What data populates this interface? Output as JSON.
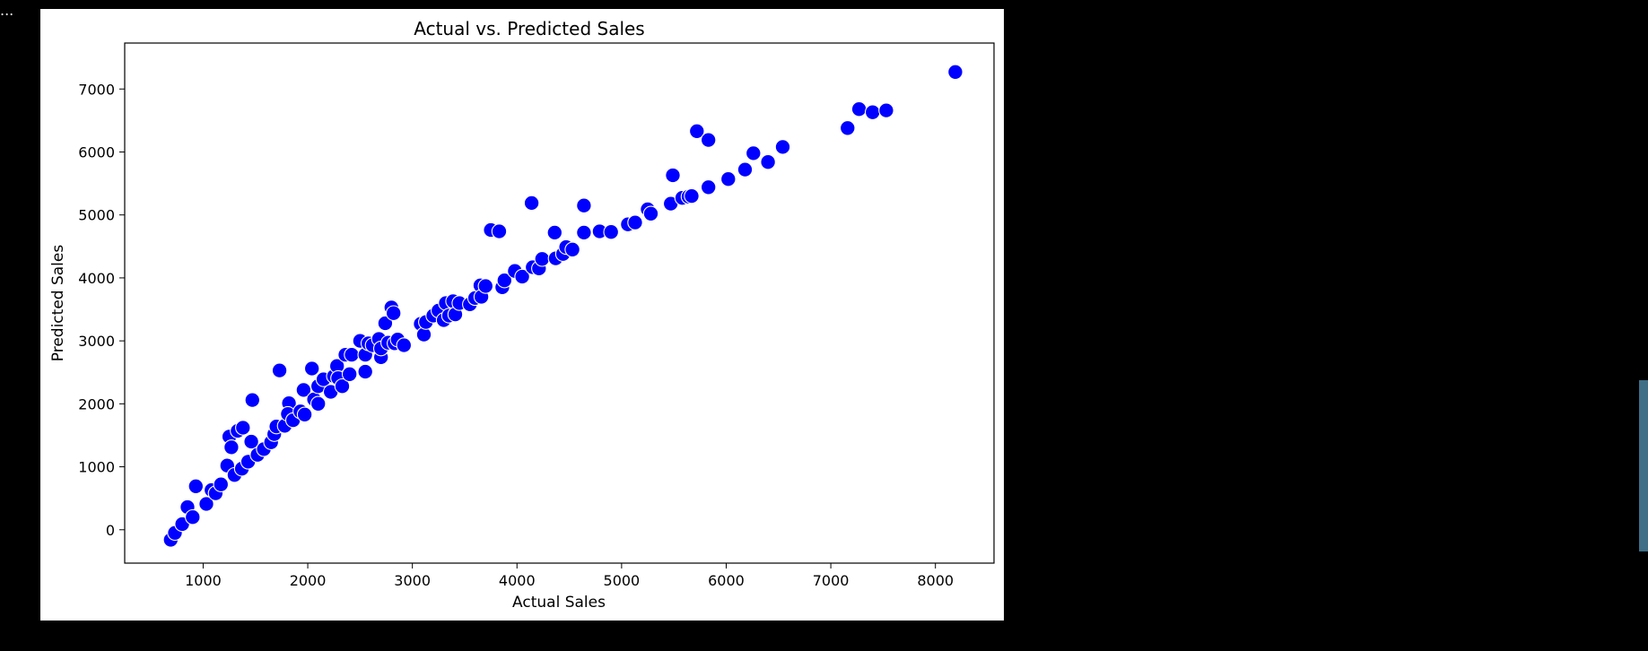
{
  "overflow_text": "...",
  "chart_data": {
    "type": "scatter",
    "title": "Actual vs. Predicted Sales",
    "xlabel": "Actual Sales",
    "ylabel": "Predicted Sales",
    "xlim": [
      250,
      8560
    ],
    "ylim": [
      -530,
      7730
    ],
    "xticks": [
      1000,
      2000,
      3000,
      4000,
      5000,
      6000,
      7000,
      8000
    ],
    "yticks": [
      0,
      1000,
      2000,
      3000,
      4000,
      5000,
      6000,
      7000
    ],
    "marker_color": "#0000ff",
    "marker_edge": "#ffffff",
    "grid": false,
    "points": [
      [
        690,
        -160
      ],
      [
        730,
        -50
      ],
      [
        800,
        90
      ],
      [
        850,
        360
      ],
      [
        900,
        200
      ],
      [
        930,
        690
      ],
      [
        1030,
        410
      ],
      [
        1080,
        630
      ],
      [
        1120,
        580
      ],
      [
        1170,
        720
      ],
      [
        1230,
        1020
      ],
      [
        1250,
        1480
      ],
      [
        1270,
        1310
      ],
      [
        1300,
        870
      ],
      [
        1330,
        1570
      ],
      [
        1380,
        1620
      ],
      [
        1370,
        970
      ],
      [
        1430,
        1080
      ],
      [
        1470,
        2060
      ],
      [
        1460,
        1400
      ],
      [
        1520,
        1190
      ],
      [
        1580,
        1280
      ],
      [
        1650,
        1390
      ],
      [
        1680,
        1520
      ],
      [
        1730,
        2530
      ],
      [
        1700,
        1640
      ],
      [
        1780,
        1650
      ],
      [
        1820,
        2010
      ],
      [
        1810,
        1840
      ],
      [
        1860,
        1740
      ],
      [
        1930,
        1880
      ],
      [
        1960,
        2220
      ],
      [
        1970,
        1830
      ],
      [
        2040,
        2560
      ],
      [
        2060,
        2070
      ],
      [
        2100,
        2000
      ],
      [
        2100,
        2280
      ],
      [
        2150,
        2390
      ],
      [
        2220,
        2190
      ],
      [
        2250,
        2440
      ],
      [
        2280,
        2600
      ],
      [
        2290,
        2410
      ],
      [
        2330,
        2280
      ],
      [
        2360,
        2780
      ],
      [
        2400,
        2470
      ],
      [
        2420,
        2780
      ],
      [
        2500,
        3000
      ],
      [
        2550,
        2510
      ],
      [
        2550,
        2780
      ],
      [
        2580,
        2960
      ],
      [
        2620,
        2930
      ],
      [
        2680,
        3030
      ],
      [
        2700,
        2740
      ],
      [
        2700,
        2880
      ],
      [
        2740,
        3280
      ],
      [
        2770,
        2970
      ],
      [
        2800,
        3530
      ],
      [
        2820,
        3440
      ],
      [
        2830,
        2960
      ],
      [
        2860,
        3020
      ],
      [
        2920,
        2930
      ],
      [
        3080,
        3270
      ],
      [
        3110,
        3100
      ],
      [
        3130,
        3300
      ],
      [
        3200,
        3400
      ],
      [
        3250,
        3480
      ],
      [
        3300,
        3330
      ],
      [
        3320,
        3600
      ],
      [
        3350,
        3400
      ],
      [
        3390,
        3630
      ],
      [
        3410,
        3420
      ],
      [
        3450,
        3600
      ],
      [
        3550,
        3580
      ],
      [
        3600,
        3680
      ],
      [
        3650,
        3880
      ],
      [
        3660,
        3700
      ],
      [
        3700,
        3870
      ],
      [
        3750,
        4760
      ],
      [
        3830,
        4740
      ],
      [
        3860,
        3850
      ],
      [
        3880,
        3960
      ],
      [
        3980,
        4110
      ],
      [
        4050,
        4020
      ],
      [
        4140,
        5190
      ],
      [
        4150,
        4170
      ],
      [
        4210,
        4150
      ],
      [
        4240,
        4300
      ],
      [
        4360,
        4720
      ],
      [
        4370,
        4310
      ],
      [
        4440,
        4380
      ],
      [
        4470,
        4490
      ],
      [
        4530,
        4450
      ],
      [
        4640,
        5150
      ],
      [
        4640,
        4720
      ],
      [
        4790,
        4740
      ],
      [
        4900,
        4730
      ],
      [
        5060,
        4850
      ],
      [
        5130,
        4880
      ],
      [
        5250,
        5090
      ],
      [
        5280,
        5020
      ],
      [
        5470,
        5180
      ],
      [
        5490,
        5630
      ],
      [
        5580,
        5270
      ],
      [
        5640,
        5290
      ],
      [
        5670,
        5300
      ],
      [
        5720,
        6330
      ],
      [
        5830,
        6190
      ],
      [
        5830,
        5440
      ],
      [
        6020,
        5570
      ],
      [
        6180,
        5720
      ],
      [
        6260,
        5980
      ],
      [
        6400,
        5840
      ],
      [
        6540,
        6080
      ],
      [
        7160,
        6380
      ],
      [
        7270,
        6680
      ],
      [
        7400,
        6630
      ],
      [
        7530,
        6660
      ],
      [
        8190,
        7270
      ]
    ]
  }
}
